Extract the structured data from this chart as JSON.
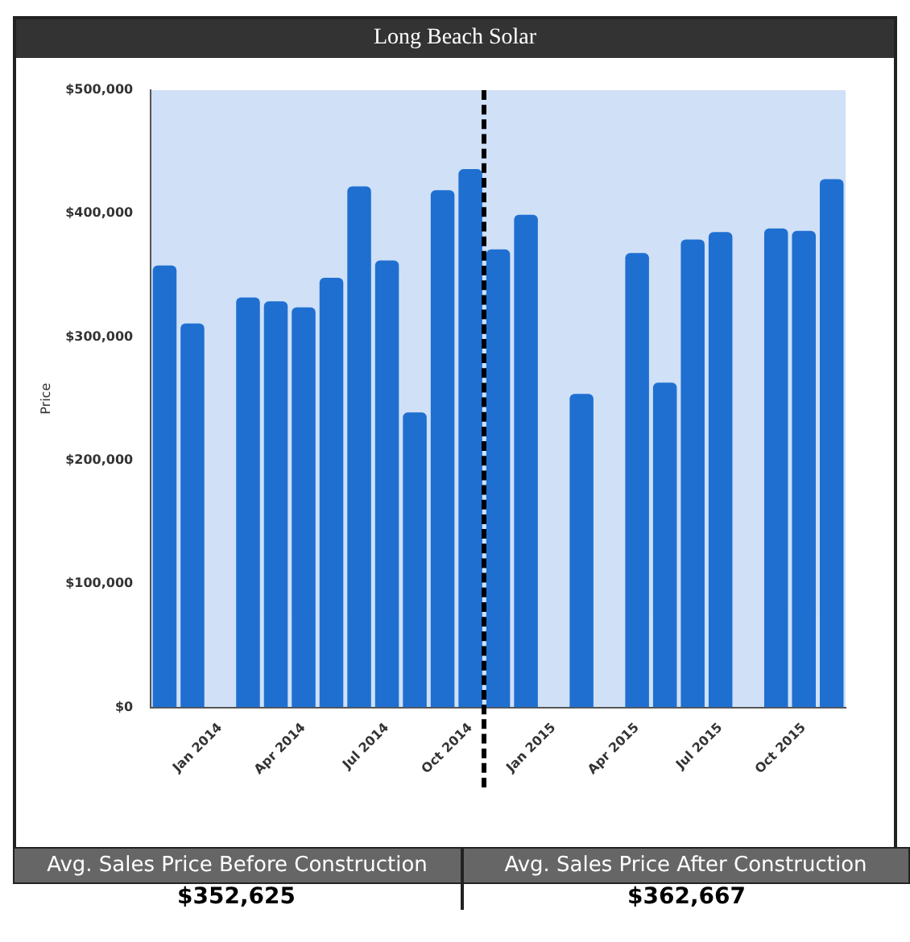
{
  "chart_data": {
    "type": "bar",
    "title": "Long Beach Solar",
    "ylabel": "Price",
    "categories": [
      null,
      null,
      "Jan 2014",
      null,
      null,
      "Apr 2014",
      null,
      null,
      "Jul 2014",
      null,
      null,
      "Oct 2014",
      null,
      null,
      "Jan 2015",
      null,
      null,
      "Apr 2015",
      null,
      null,
      "Jul 2015",
      null,
      null,
      "Oct 2015",
      null
    ],
    "series": [
      {
        "color": "#1f6fd1",
        "values": [
          358000,
          311000,
          null,
          332000,
          329000,
          324000,
          348000,
          422000,
          362000,
          239000,
          419000,
          436000,
          371000,
          399000,
          null,
          254000,
          null,
          368000,
          263000,
          379000,
          385000,
          null,
          388000,
          386000,
          428000
        ]
      }
    ],
    "ylim": [
      0,
      500000
    ],
    "yticks": [
      {
        "value": 0,
        "label": "$0"
      },
      {
        "value": 100000,
        "label": "$100,000"
      },
      {
        "value": 200000,
        "label": "$200,000"
      },
      {
        "value": 300000,
        "label": "$300,000"
      },
      {
        "value": 400000,
        "label": "$400,000"
      },
      {
        "value": 500000,
        "label": "$500,000"
      }
    ],
    "grid": false,
    "legend": false,
    "annotations": [
      "Avg. Sales Price Before Construction",
      "Avg. Sales Price After Construction",
      "$352,625",
      "$362,667"
    ]
  }
}
